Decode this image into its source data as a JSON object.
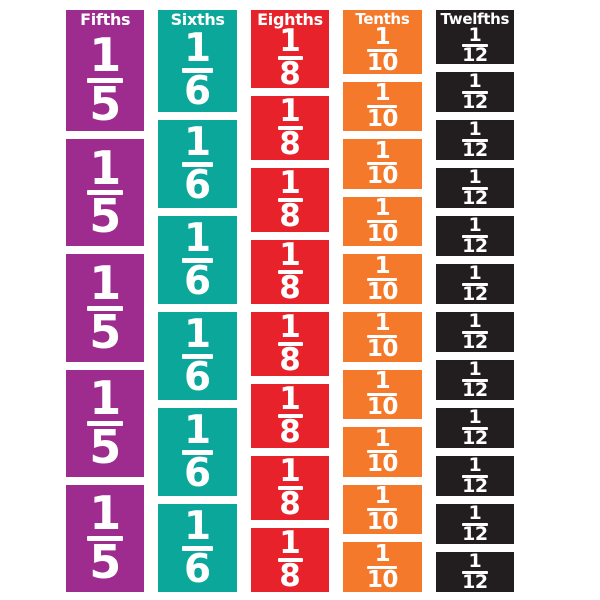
{
  "board": {
    "background": "#FFFFFF",
    "tile_text_color": "#FFFFFF",
    "columns": [
      {
        "label": "Fifths",
        "fraction": {
          "numerator": "1",
          "denominator": "5"
        },
        "tile_count": 5,
        "color": "#9E2B8E"
      },
      {
        "label": "Sixths",
        "fraction": {
          "numerator": "1",
          "denominator": "6"
        },
        "tile_count": 6,
        "color": "#0CA79B"
      },
      {
        "label": "Eighths",
        "fraction": {
          "numerator": "1",
          "denominator": "8"
        },
        "tile_count": 8,
        "color": "#E8222A"
      },
      {
        "label": "Tenths",
        "fraction": {
          "numerator": "1",
          "denominator": "10"
        },
        "tile_count": 10,
        "color": "#F4792B"
      },
      {
        "label": "Twelfths",
        "fraction": {
          "numerator": "1",
          "denominator": "12"
        },
        "tile_count": 12,
        "color": "#221E1F"
      }
    ]
  }
}
